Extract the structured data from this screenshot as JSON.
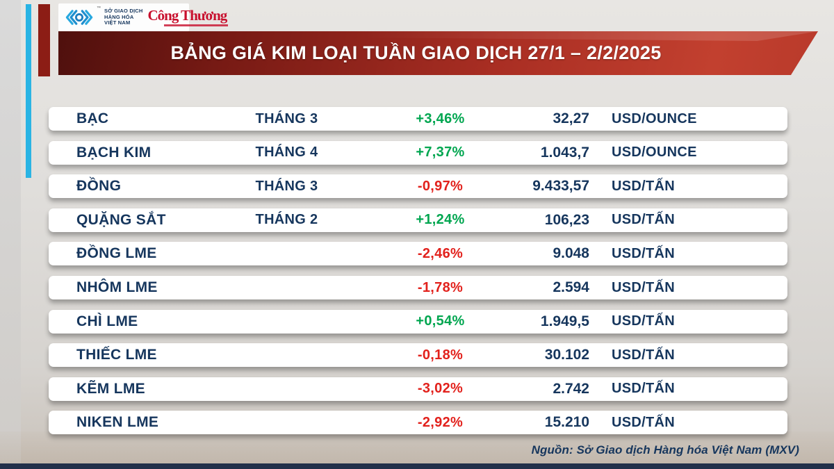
{
  "header": {
    "mxv_lines": [
      "SỞ GIAO DỊCH",
      "HÀNG HÓA",
      "VIỆT NAM"
    ],
    "trademark": "™",
    "congthuong": "Công Thương"
  },
  "banner": {
    "title": "BẢNG GIÁ KIM LOẠI TUẦN GIAO DỊCH 27/1 – 2/2/2025"
  },
  "table": {
    "rows": [
      {
        "name": "BẠC",
        "month": "THÁNG 3",
        "change": "+3,46%",
        "value": "32,27",
        "unit": "USD/OUNCE"
      },
      {
        "name": "BẠCH KIM",
        "month": "THÁNG 4",
        "change": "+7,37%",
        "value": "1.043,7",
        "unit": "USD/OUNCE"
      },
      {
        "name": "ĐỒNG",
        "month": "THÁNG 3",
        "change": "-0,97%",
        "value": "9.433,57",
        "unit": "USD/TẤN"
      },
      {
        "name": "QUẶNG SẮT",
        "month": "THÁNG 2",
        "change": "+1,24%",
        "value": "106,23",
        "unit": "USD/TẤN"
      },
      {
        "name": "ĐỒNG LME",
        "month": "",
        "change": "-2,46%",
        "value": "9.048",
        "unit": "USD/TẤN"
      },
      {
        "name": "NHÔM LME",
        "month": "",
        "change": "-1,78%",
        "value": "2.594",
        "unit": "USD/TẤN"
      },
      {
        "name": "CHÌ LME",
        "month": "",
        "change": "+0,54%",
        "value": "1.949,5",
        "unit": "USD/TẤN"
      },
      {
        "name": "THIẾC LME",
        "month": "",
        "change": "-0,18%",
        "value": "30.102",
        "unit": "USD/TẤN"
      },
      {
        "name": "KẼM LME",
        "month": "",
        "change": "-3,02%",
        "value": "2.742",
        "unit": "USD/TẤN"
      },
      {
        "name": "NIKEN LME",
        "month": "",
        "change": "-2,92%",
        "value": "15.210",
        "unit": "USD/TẤN"
      }
    ]
  },
  "footer": {
    "source": "Nguồn: Sở Giao dịch Hàng hóa Việt Nam (MXV)"
  },
  "colors": {
    "positive": "#00a650",
    "negative": "#e2211c",
    "navy": "#16365d",
    "banner_red": "#a92e23",
    "cyan_stripe": "#2ab4e4",
    "maroon_stripe": "#8c1d15"
  }
}
